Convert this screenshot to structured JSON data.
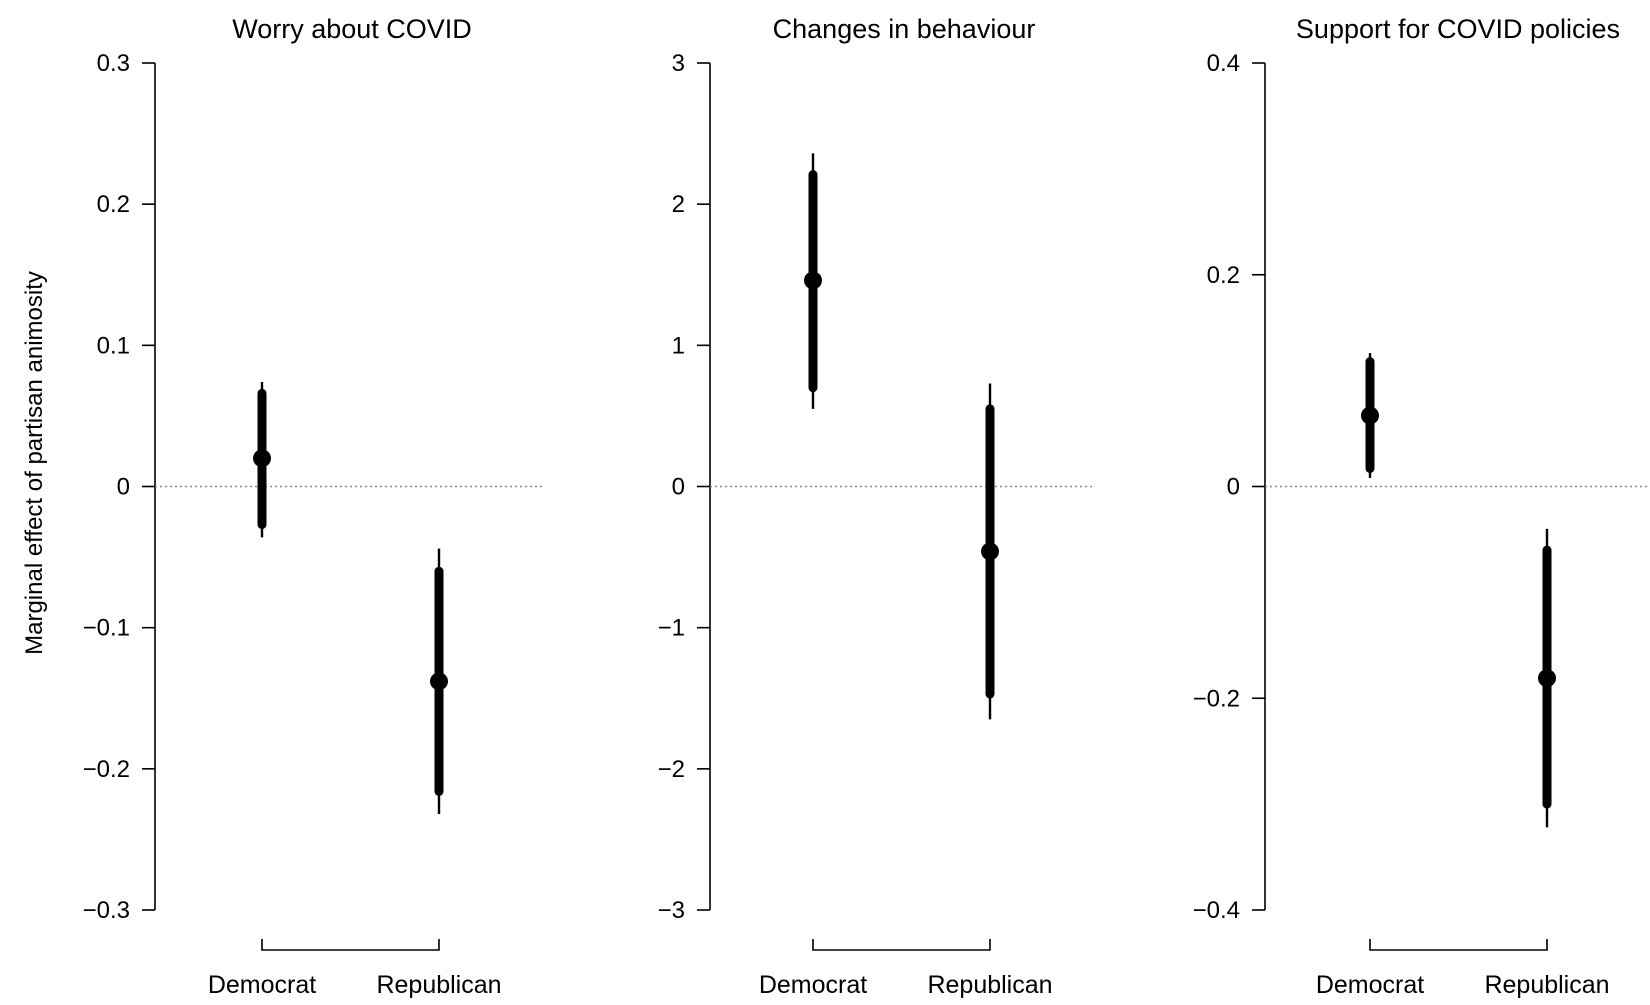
{
  "figure": {
    "ylabel": "Marginal effect of partisan animosity"
  },
  "chart_data": [
    {
      "type": "scatter",
      "title": "Worry about COVID",
      "xlabel": "",
      "ylabel": "Marginal effect of partisan animosity",
      "categories": [
        "Democrat",
        "Republican"
      ],
      "ylim": [
        -0.3,
        0.3
      ],
      "yticks": [
        0.3,
        0.2,
        0.1,
        0,
        -0.1,
        -0.2,
        -0.3
      ],
      "ytick_labels": [
        "0.3",
        "0.2",
        "0.1",
        "0",
        "−0.1",
        "−0.2",
        "−0.3"
      ],
      "reference_line": 0,
      "grid": false,
      "series": [
        {
          "values": [
            0.02,
            -0.138
          ],
          "ci_inner": [
            [
              -0.027,
              0.066
            ],
            [
              -0.216,
              -0.06
            ]
          ],
          "ci_outer": [
            [
              -0.036,
              0.074
            ],
            [
              -0.232,
              -0.044
            ]
          ]
        }
      ]
    },
    {
      "type": "scatter",
      "title": "Changes in behaviour",
      "xlabel": "",
      "ylabel": "",
      "categories": [
        "Democrat",
        "Republican"
      ],
      "ylim": [
        -3,
        3
      ],
      "yticks": [
        3,
        2,
        1,
        0,
        -1,
        -2,
        -3
      ],
      "ytick_labels": [
        "3",
        "2",
        "1",
        "0",
        "−1",
        "−2",
        "−3"
      ],
      "reference_line": 0,
      "grid": false,
      "series": [
        {
          "values": [
            1.46,
            -0.46
          ],
          "ci_inner": [
            [
              0.7,
              2.21
            ],
            [
              -1.47,
              0.55
            ]
          ],
          "ci_outer": [
            [
              0.55,
              2.36
            ],
            [
              -1.65,
              0.73
            ]
          ]
        }
      ]
    },
    {
      "type": "scatter",
      "title": "Support for COVID policies",
      "xlabel": "",
      "ylabel": "",
      "categories": [
        "Democrat",
        "Republican"
      ],
      "ylim": [
        -0.4,
        0.4
      ],
      "yticks": [
        0.4,
        0.2,
        0,
        -0.2,
        -0.4
      ],
      "ytick_labels": [
        "0.4",
        "0.2",
        "0",
        "−0.2",
        "−0.4"
      ],
      "reference_line": 0,
      "grid": false,
      "series": [
        {
          "values": [
            0.067,
            -0.181
          ],
          "ci_inner": [
            [
              0.017,
              0.118
            ],
            [
              -0.3,
              -0.06
            ]
          ],
          "ci_outer": [
            [
              0.008,
              0.126
            ],
            [
              -0.322,
              -0.04
            ]
          ]
        }
      ]
    }
  ]
}
